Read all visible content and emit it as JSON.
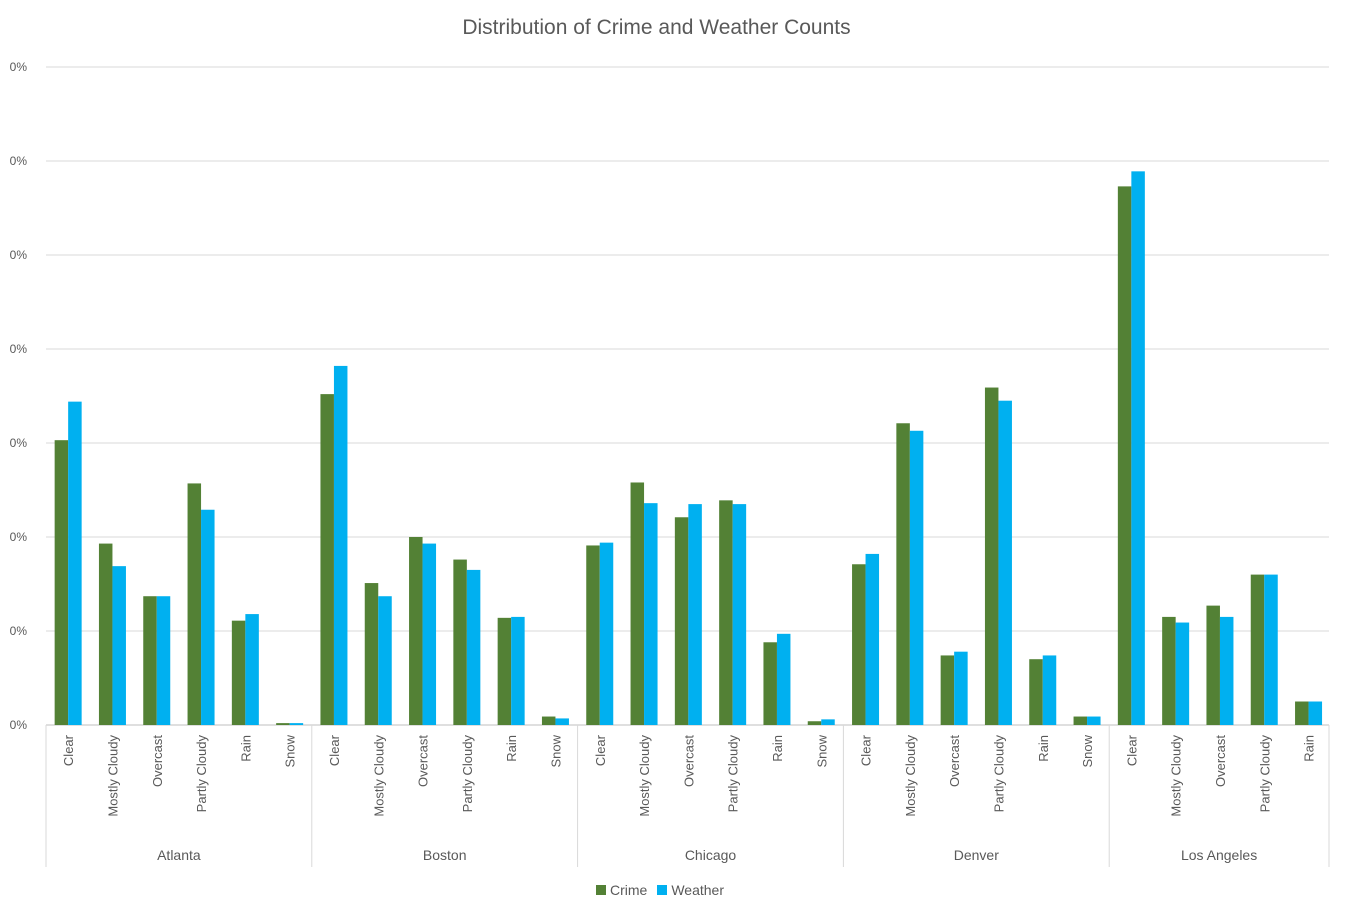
{
  "chart_data": {
    "type": "bar",
    "title": "Distribution of Crime and Weather Counts",
    "y_tick_labels": [
      "0%",
      "0%",
      "0%",
      "0%",
      "0%",
      "0%",
      "0%",
      "0%"
    ],
    "ylim": [
      0,
      7
    ],
    "grid": true,
    "legend_position": "bottom",
    "groups": [
      {
        "name": "Atlanta",
        "categories": [
          "Clear",
          "Mostly Cloudy",
          "Overcast",
          "Partly Cloudy",
          "Rain",
          "Snow"
        ]
      },
      {
        "name": "Boston",
        "categories": [
          "Clear",
          "Mostly Cloudy",
          "Overcast",
          "Partly Cloudy",
          "Rain",
          "Snow"
        ]
      },
      {
        "name": "Chicago",
        "categories": [
          "Clear",
          "Mostly Cloudy",
          "Overcast",
          "Partly Cloudy",
          "Rain",
          "Snow"
        ]
      },
      {
        "name": "Denver",
        "categories": [
          "Clear",
          "Mostly Cloudy",
          "Overcast",
          "Partly Cloudy",
          "Rain",
          "Snow"
        ]
      },
      {
        "name": "Los Angeles",
        "categories": [
          "Clear",
          "Mostly Cloudy",
          "Overcast",
          "Partly Cloudy",
          "Rain"
        ]
      }
    ],
    "series": [
      {
        "name": "Crime",
        "color": "#538135",
        "values": [
          3.03,
          1.93,
          1.37,
          2.57,
          1.11,
          0.02,
          3.52,
          1.51,
          2.0,
          1.76,
          1.14,
          0.09,
          1.91,
          2.58,
          2.21,
          2.39,
          0.88,
          0.04,
          1.71,
          3.21,
          0.74,
          3.59,
          0.7,
          0.09,
          5.73,
          1.15,
          1.27,
          1.6,
          0.25
        ]
      },
      {
        "name": "Weather",
        "color": "#00b0f0",
        "values": [
          3.44,
          1.69,
          1.37,
          2.29,
          1.18,
          0.02,
          3.82,
          1.37,
          1.93,
          1.65,
          1.15,
          0.07,
          1.94,
          2.36,
          2.35,
          2.35,
          0.97,
          0.06,
          1.82,
          3.13,
          0.78,
          3.45,
          0.74,
          0.09,
          5.89,
          1.09,
          1.15,
          1.6,
          0.25
        ]
      }
    ]
  }
}
